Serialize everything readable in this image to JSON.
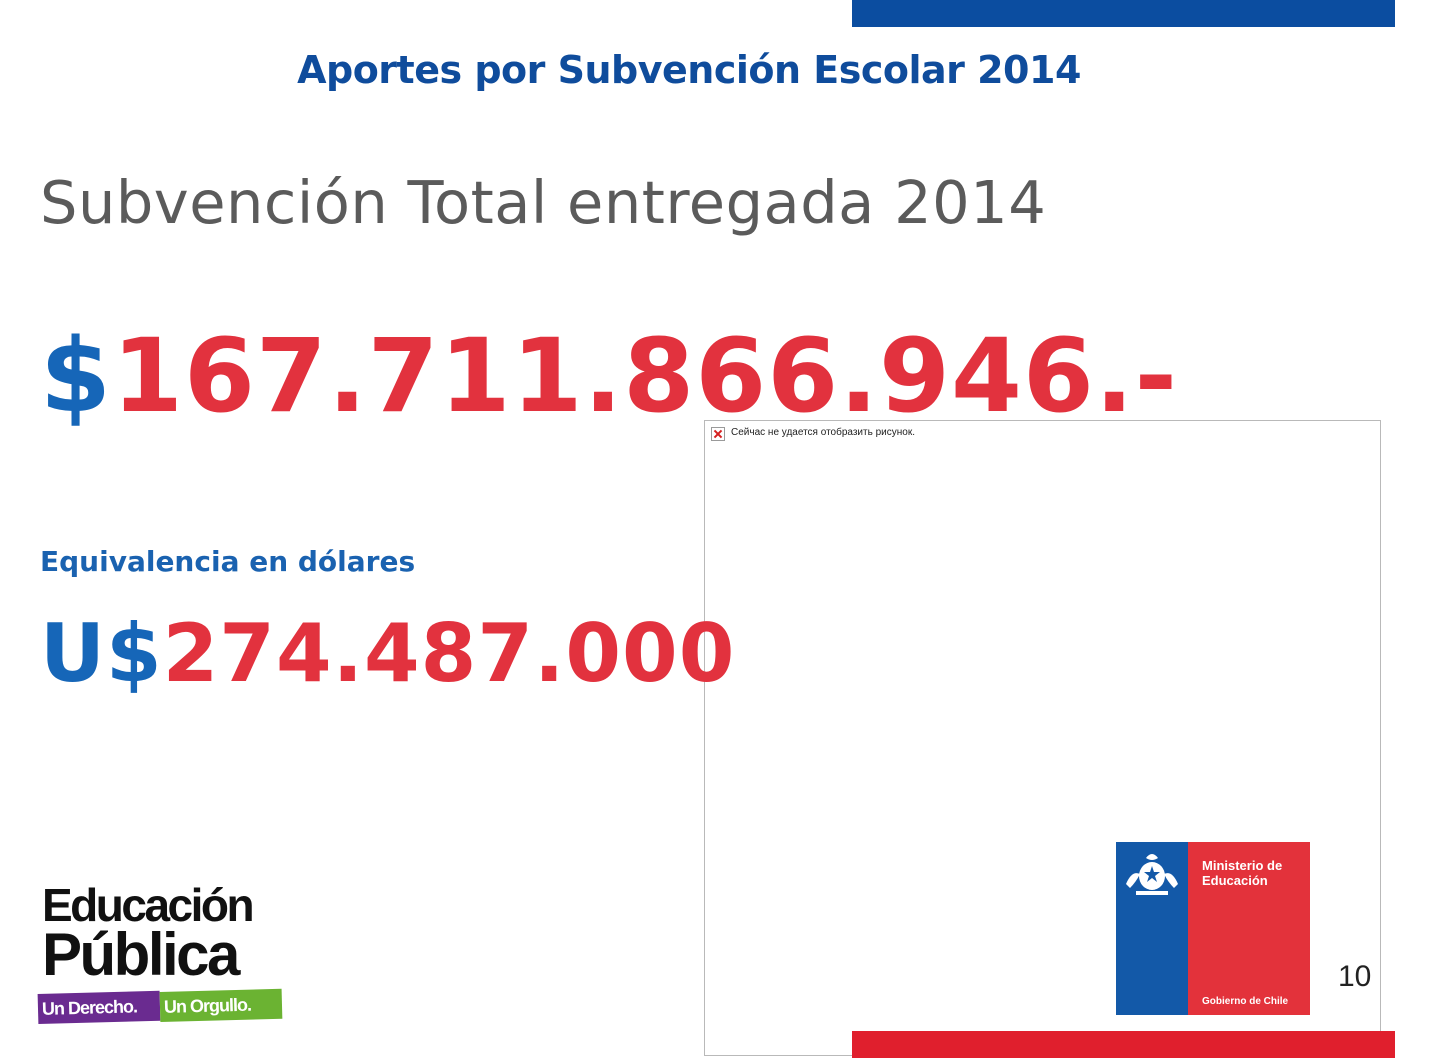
{
  "slide": {
    "title": "Aportes por Subvención Escolar 2014",
    "subtitle": "Subvención Total entregada 2014",
    "total": {
      "currency_symbol": "$",
      "amount": "167.711.866.946.-"
    },
    "usd_label": "Equivalencia en dólares",
    "usd": {
      "currency_symbol": "U$",
      "amount": "274.487.000"
    },
    "page_number": "10"
  },
  "broken_image": {
    "message": "Сейчас не удается отобразить рисунок.",
    "icon": "broken-image-icon"
  },
  "mineduc_logo": {
    "name": "Ministerio de Educación",
    "footer": "Gobierno de Chile",
    "icon": "chile-crest-icon"
  },
  "educacion_publica_logo": {
    "line1": "Educación",
    "line2": "Pública",
    "tag1": "Un Derecho.",
    "tag2": "Un Orgullo."
  },
  "colors": {
    "title_blue": "#0f4c9c",
    "symbol_blue": "#1666b8",
    "amount_red": "#e2323e",
    "bar_blue": "#0b4da0",
    "bar_red": "#e01f2d"
  }
}
